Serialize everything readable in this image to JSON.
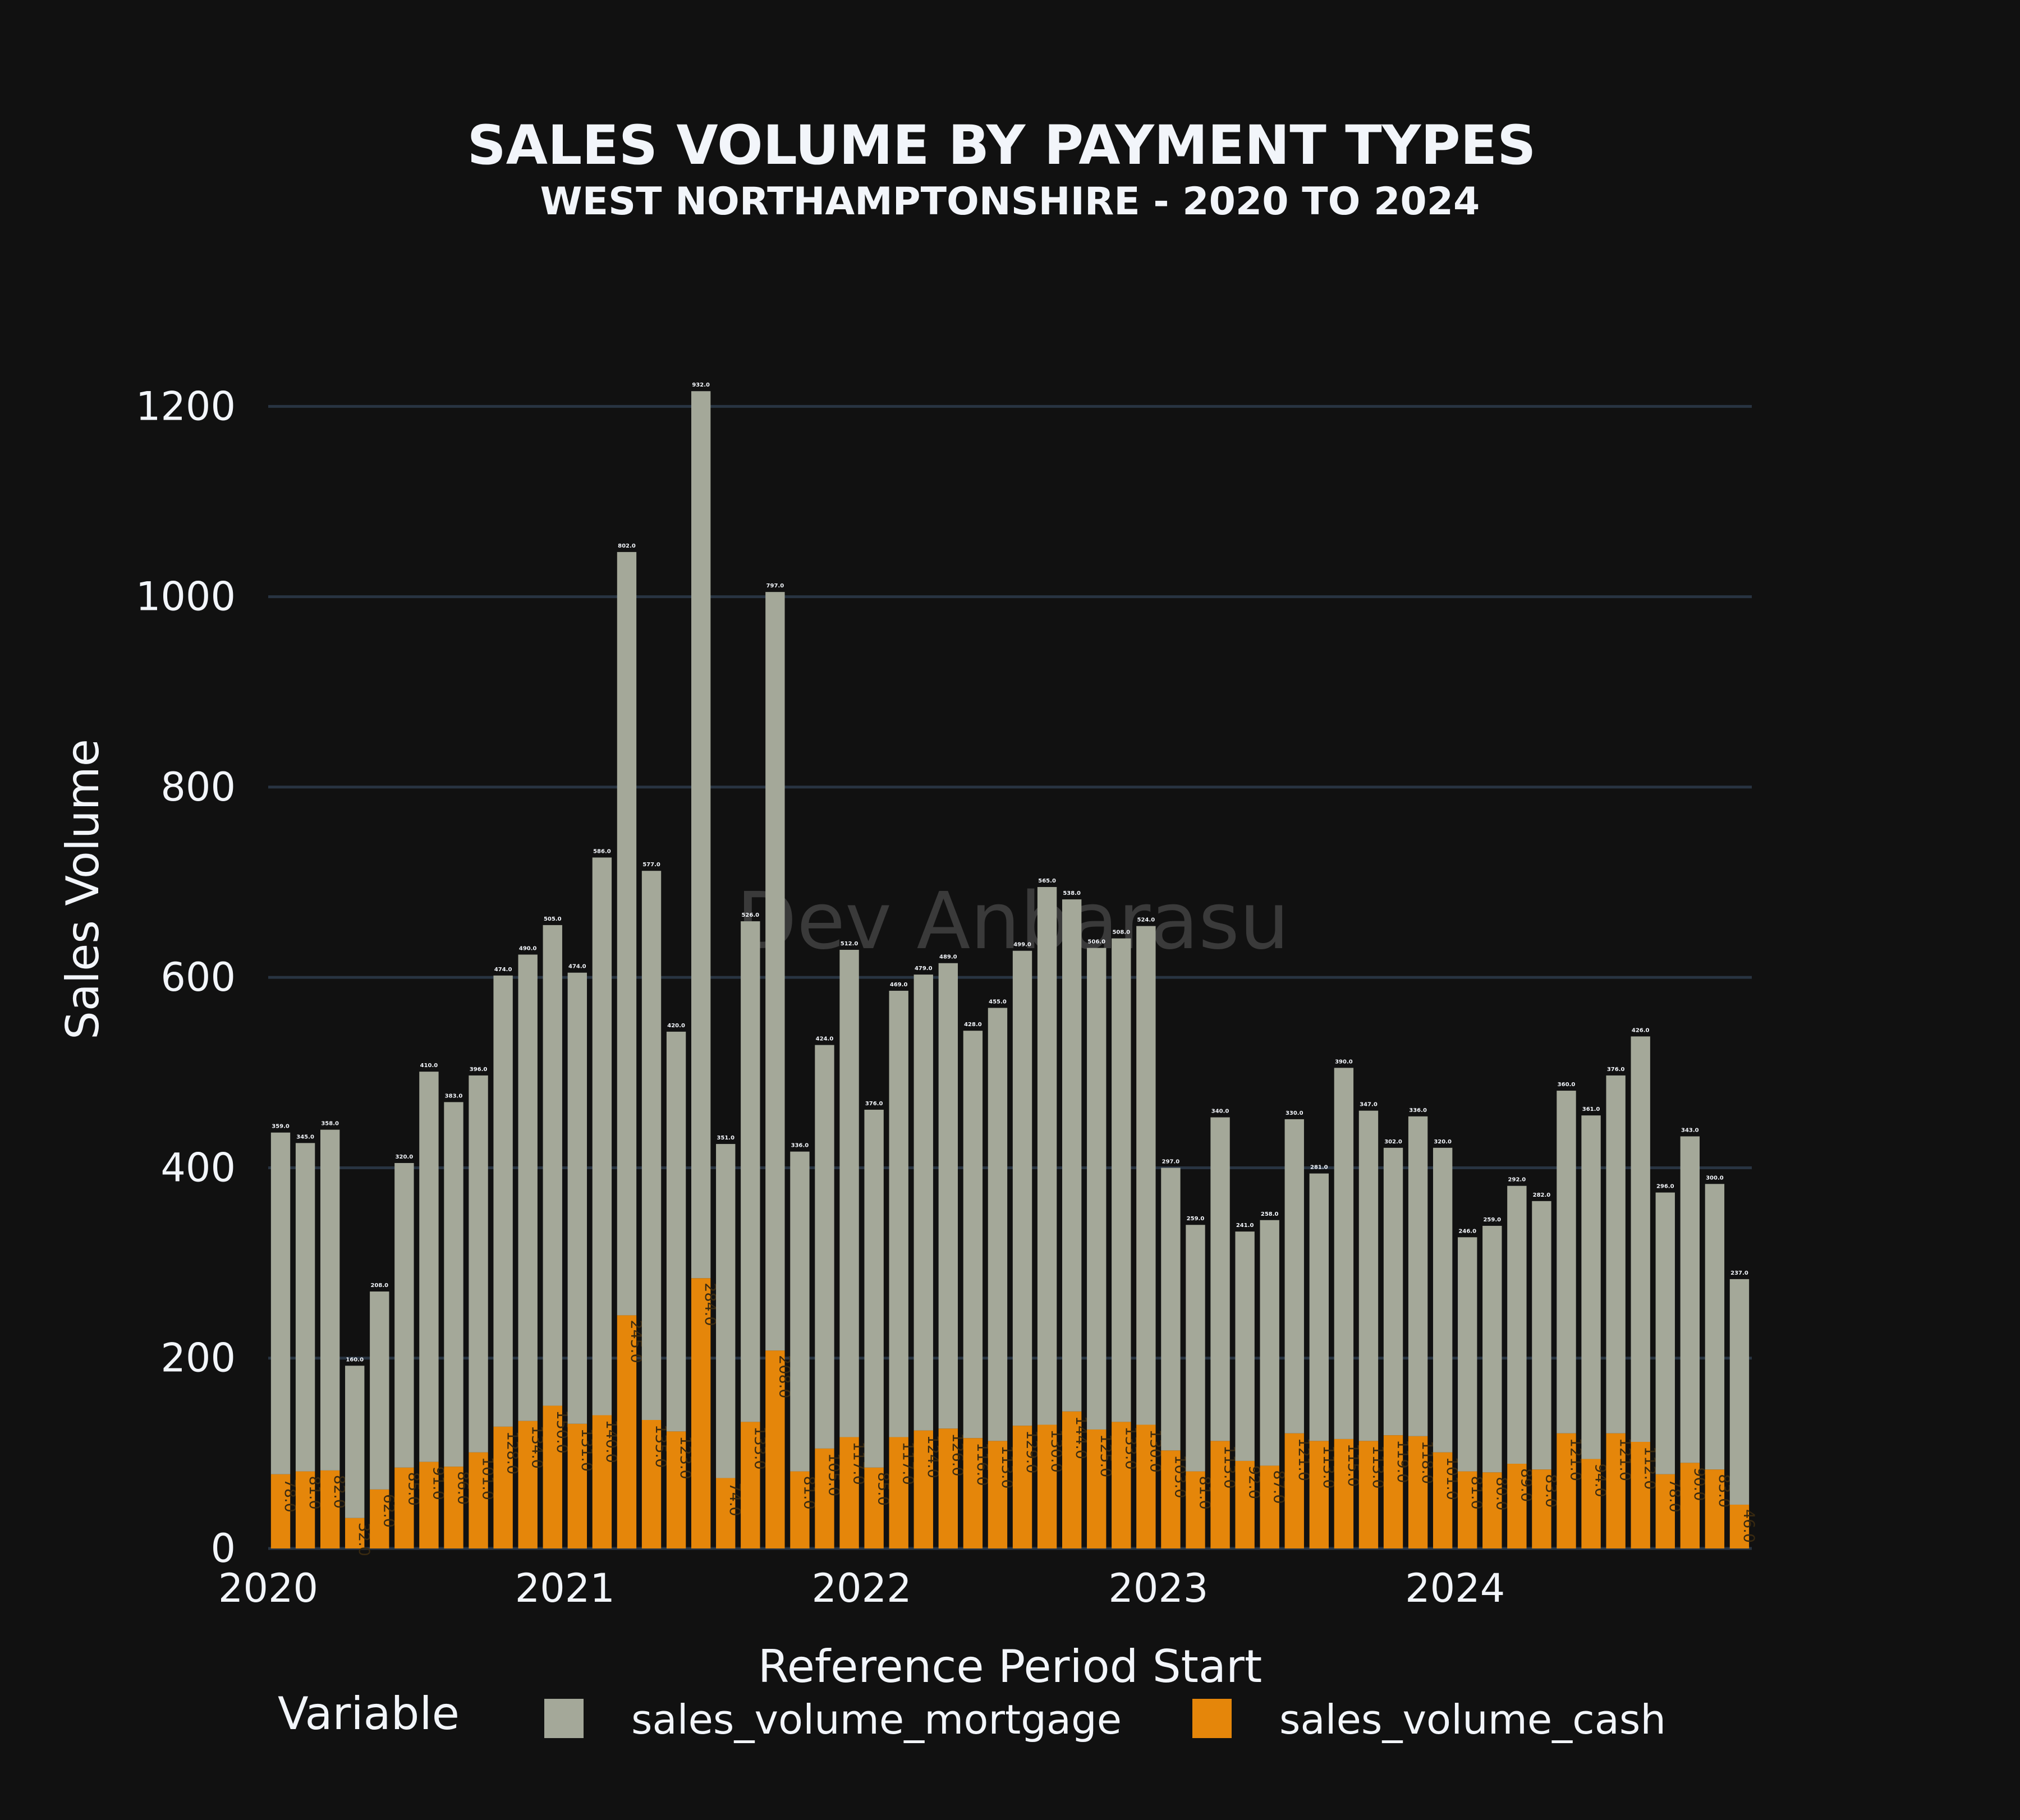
{
  "colors": {
    "background": "#111111",
    "grid": "#283442",
    "text": "#f2f5fa",
    "mortgage": "#a4a899",
    "cash": "#e5860a",
    "watermark": "#3a3a3a"
  },
  "watermark": "Dev Anbarasu",
  "chart_data": {
    "type": "bar",
    "barmode": "stack",
    "title": "SALES VOLUME BY PAYMENT TYPES",
    "subtitle": "WEST NORTHAMPTONSHIRE - 2020 TO 2024",
    "xlabel": "Reference Period Start",
    "ylabel": "Sales Volume",
    "ylim": [
      0,
      1235
    ],
    "yticks": [
      0,
      200,
      400,
      600,
      800,
      1000,
      1200
    ],
    "xticks": [
      "2020",
      "2021",
      "2022",
      "2023",
      "2024"
    ],
    "grid": true,
    "legend": {
      "title": "Variable",
      "position": "bottom",
      "entries": [
        "sales_volume_mortgage",
        "sales_volume_cash"
      ]
    },
    "categories": [
      "2020-01",
      "2020-02",
      "2020-03",
      "2020-04",
      "2020-05",
      "2020-06",
      "2020-07",
      "2020-08",
      "2020-09",
      "2020-10",
      "2020-11",
      "2020-12",
      "2021-01",
      "2021-02",
      "2021-03",
      "2021-04",
      "2021-05",
      "2021-06",
      "2021-07",
      "2021-08",
      "2021-09",
      "2021-10",
      "2021-11",
      "2021-12",
      "2022-01",
      "2022-02",
      "2022-03",
      "2022-04",
      "2022-05",
      "2022-06",
      "2022-07",
      "2022-08",
      "2022-09",
      "2022-10",
      "2022-11",
      "2022-12",
      "2023-01",
      "2023-02",
      "2023-03",
      "2023-04",
      "2023-05",
      "2023-06",
      "2023-07",
      "2023-08",
      "2023-09",
      "2023-10",
      "2023-11",
      "2023-12",
      "2024-01",
      "2024-02",
      "2024-03",
      "2024-04",
      "2024-05",
      "2024-06",
      "2024-07",
      "2024-08",
      "2024-09",
      "2024-10",
      "2024-11",
      "2024-12"
    ],
    "series": [
      {
        "name": "sales_volume_cash",
        "values": [
          78,
          81,
          82,
          32,
          62,
          85,
          91,
          86,
          101,
          128,
          134,
          150,
          131,
          140,
          245,
          135,
          123,
          284,
          74,
          133,
          208,
          81,
          105,
          117,
          85,
          117,
          124,
          126,
          116,
          113,
          129,
          130,
          144,
          125,
          133,
          130,
          103,
          81,
          113,
          92,
          87,
          121,
          113,
          115,
          113,
          119,
          118,
          101,
          81,
          80,
          89,
          83,
          121,
          94,
          121,
          112,
          78,
          90,
          83,
          46
        ]
      },
      {
        "name": "sales_volume_mortgage",
        "values": [
          359,
          345,
          358,
          160,
          208,
          320,
          410,
          383,
          396,
          474,
          490,
          505,
          474,
          586,
          802,
          577,
          420,
          932,
          351,
          526,
          797,
          336,
          424,
          512,
          376,
          469,
          479,
          489,
          428,
          455,
          499,
          565,
          538,
          506,
          508,
          524,
          297,
          259,
          340,
          241,
          258,
          330,
          281,
          390,
          347,
          302,
          336,
          320,
          246,
          259,
          292,
          282,
          360,
          361,
          376,
          426,
          296,
          343,
          300,
          237
        ]
      }
    ]
  }
}
